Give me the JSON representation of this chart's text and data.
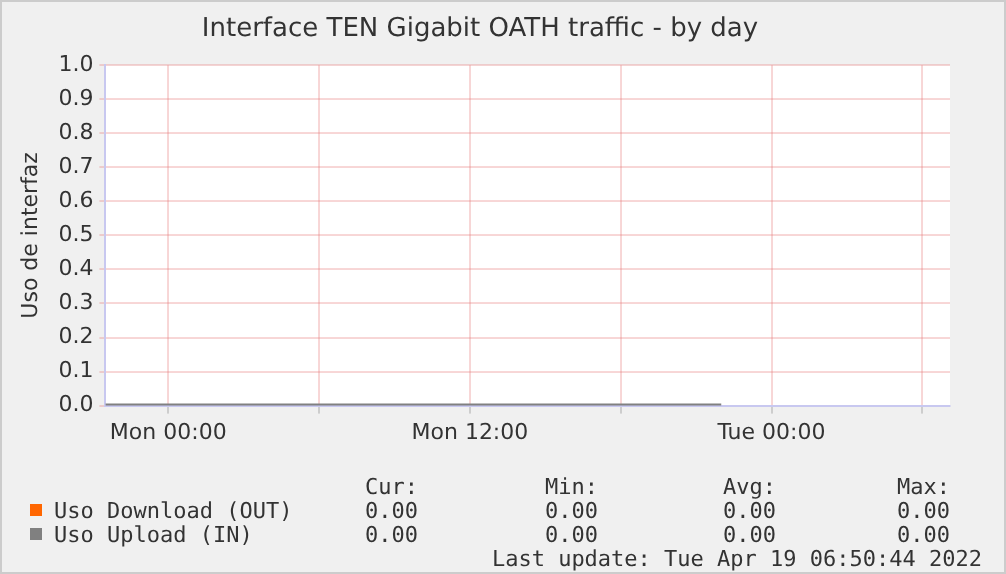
{
  "chart_data": {
    "type": "line",
    "title": "Interface TEN Gigabit OATH traffic - by day",
    "ylabel": "Uso de interfaz",
    "x": [
      "2022-04-17T21:30",
      "2022-04-18T22:00"
    ],
    "series": [
      {
        "name": "Uso Download (OUT)",
        "color": "#ff6600",
        "values": [
          null,
          null
        ]
      },
      {
        "name": "Uso Upload (IN)",
        "color": "#808080",
        "values": [
          0,
          0
        ]
      }
    ],
    "xlim": [
      "2022-04-17T21:30",
      "2022-04-19T07:06"
    ],
    "xticks": [
      {
        "value": "2022-04-18T00:00",
        "label": "Mon 00:00"
      },
      {
        "value": "2022-04-18T06:00",
        "label": null
      },
      {
        "value": "2022-04-18T12:00",
        "label": "Mon 12:00"
      },
      {
        "value": "2022-04-18T18:00",
        "label": null
      },
      {
        "value": "2022-04-19T00:00",
        "label": "Tue 00:00"
      },
      {
        "value": "2022-04-19T06:00",
        "label": null
      }
    ],
    "ylim": [
      0,
      1
    ],
    "yticks": [
      {
        "value": 0,
        "label": "0.0"
      },
      0.1,
      0.2,
      0.3,
      0.4,
      0.5,
      0.6,
      0.7,
      0.8,
      0.9,
      {
        "value": 1,
        "label": "1.0"
      }
    ],
    "grid": true,
    "legend": "bottom",
    "marker": "none",
    "line_style": "solid",
    "annotations": [
      "Cur:",
      "Min:",
      "Avg:",
      "Max:",
      "0.00",
      "0.00",
      "0.00",
      "0.00",
      "0.00",
      "0.00",
      "0.00",
      "0.00",
      "Last update: Tue Apr 19 06:50:44 2022"
    ]
  }
}
